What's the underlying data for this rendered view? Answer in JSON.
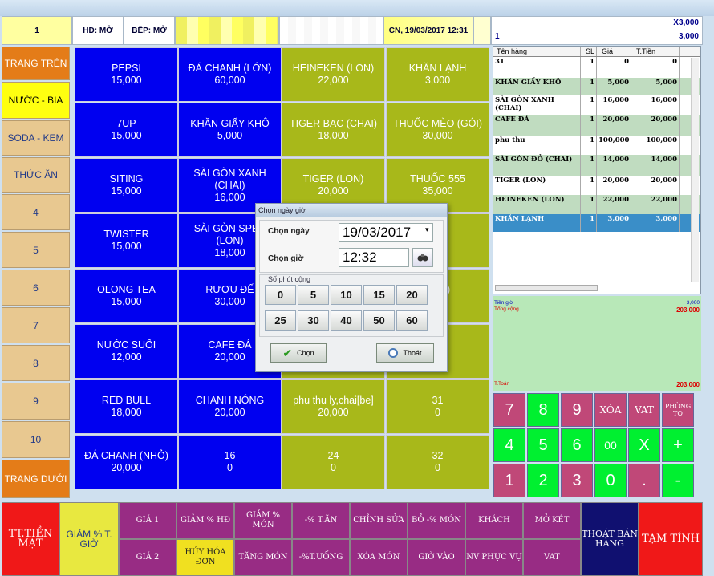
{
  "top": {
    "table_no": "1",
    "hd_status": "HĐ: MỞ",
    "bep_status": "BẾP: MỞ",
    "datetime": "CN, 19/03/2017  12:31",
    "right_qty": "X3,000",
    "right_left": "1",
    "right_total": "3,000"
  },
  "categories": [
    {
      "label": "TRANG TRÊN"
    },
    {
      "label": "NƯỚC - BIA"
    },
    {
      "label": "SODA - KEM"
    },
    {
      "label": "THỨC ĂN"
    },
    {
      "label": "4"
    },
    {
      "label": "5"
    },
    {
      "label": "6"
    },
    {
      "label": "7"
    },
    {
      "label": "8"
    },
    {
      "label": "9"
    },
    {
      "label": "10"
    },
    {
      "label": "TRANG DƯỚI"
    }
  ],
  "products": [
    {
      "name": "PEPSI",
      "price": "15,000"
    },
    {
      "name": "ĐÁ CHANH (LỚN)",
      "price": "60,000"
    },
    {
      "name": "HEINEKEN (LON)",
      "price": "22,000"
    },
    {
      "name": "KHĂN LẠNH",
      "price": "3,000"
    },
    {
      "name": "7UP",
      "price": "15,000"
    },
    {
      "name": "KHĂN GIẤY KHÔ",
      "price": "5,000"
    },
    {
      "name": "TIGER BẠC (CHAI)",
      "price": "18,000"
    },
    {
      "name": "THUỐC MÈO (GÓI)",
      "price": "30,000"
    },
    {
      "name": "SITING",
      "price": "15,000"
    },
    {
      "name": "SÀI GÒN XANH (CHAI)",
      "price": "16,000"
    },
    {
      "name": "TIGER (LON)",
      "price": "20,000"
    },
    {
      "name": "THUỐC 555",
      "price": "35,000"
    },
    {
      "name": "TWISTER",
      "price": "15,000"
    },
    {
      "name": "SÀI GÒN SPEN (LON)",
      "price": "18,000"
    },
    {
      "name": "",
      "price": ""
    },
    {
      "name": "...ẸT",
      "price": ""
    },
    {
      "name": "OLONG TEA",
      "price": "15,000"
    },
    {
      "name": "RƯỢU ĐẾ",
      "price": "30,000"
    },
    {
      "name": "",
      "price": ""
    },
    {
      "name": "(GÓI)",
      "price": "...0"
    },
    {
      "name": "NƯỚC SUỐI",
      "price": "12,000"
    },
    {
      "name": "CAFE ĐÁ",
      "price": "20,000"
    },
    {
      "name": "",
      "price": ""
    },
    {
      "name": "...I",
      "price": ""
    },
    {
      "name": "RED BULL",
      "price": "18,000"
    },
    {
      "name": "CHANH NÓNG",
      "price": "20,000"
    },
    {
      "name": "phu thu ly,chai[be]",
      "price": "20,000"
    },
    {
      "name": "31",
      "price": "0"
    },
    {
      "name": "ĐÁ CHANH (NHỎ)",
      "price": "20,000"
    },
    {
      "name": "16",
      "price": "0"
    },
    {
      "name": "24",
      "price": "0"
    },
    {
      "name": "32",
      "price": "0"
    }
  ],
  "order": {
    "headers": [
      "Tên hàng",
      "SL",
      "Giá",
      "T.Tiền"
    ],
    "rows": [
      {
        "name": "31",
        "qty": "1",
        "price": "0",
        "total": "0"
      },
      {
        "name": "KHĂN GIẤY KHÔ",
        "qty": "1",
        "price": "5,000",
        "total": "5,000"
      },
      {
        "name": "SÀI GÒN XANH (CHAI)",
        "qty": "1",
        "price": "16,000",
        "total": "16,000"
      },
      {
        "name": "CAFE ĐÁ",
        "qty": "1",
        "price": "20,000",
        "total": "20,000"
      },
      {
        "name": "phu thu",
        "qty": "1",
        "price": "100,000",
        "total": "100,000"
      },
      {
        "name": "SÀI GÒN ĐỎ (CHAI)",
        "qty": "1",
        "price": "14,000",
        "total": "14,000"
      },
      {
        "name": "TIGER (LON)",
        "qty": "1",
        "price": "20,000",
        "total": "20,000"
      },
      {
        "name": "HEINEKEN (LON)",
        "qty": "1",
        "price": "22,000",
        "total": "22,000"
      },
      {
        "name": "KHĂN LẠNH",
        "qty": "1",
        "price": "3,000",
        "total": "3,000"
      }
    ],
    "tien_gio_label": "Tiền giờ",
    "tien_gio": "3,000",
    "tong_cong_label": "Tổng cộng",
    "tong_cong": "203,000",
    "ttoan_label": "T.Toán",
    "ttoan": "203,000"
  },
  "keypad": [
    "7",
    "8",
    "9",
    "XÓA",
    "VAT",
    "PHÒNG TO",
    "4",
    "5",
    "6",
    "00",
    "X",
    "+",
    "1",
    "2",
    "3",
    "0",
    ".",
    "-"
  ],
  "bottom": {
    "tt_tien_mat": "TT.TIỀN MẶT",
    "giam_t_gio": "GIẢM % T. GIỜ",
    "gia1": "GIÁ 1",
    "gia2": "GIÁ 2",
    "giam_hd": "GIẢM % HĐ",
    "huy_hoa_don": "HỦY HÓA ĐƠN",
    "giam_mon": "GIẢM % MÓN",
    "tang_mon": "TĂNG MÓN",
    "t_an": "-% T.ĂN",
    "t_uong": "-%T.UỐNG",
    "chinh_sua": "CHỈNH SỬA",
    "xoa_mon": "XÓA MÓN",
    "bo_mon": "BỎ -% MÓN",
    "gio_vao": "GIỜ VÀO",
    "khach": "KHÁCH",
    "nv_phuc_vu": "NV PHỤC VỤ",
    "mo_ket": "MỞ KÉT",
    "vat": "VAT",
    "thoat_ban_hang": "THOÁT BÁN HÀNG",
    "tam_tinh": "TẠM TÍNH"
  },
  "dialog": {
    "title": "Chọn ngày giờ",
    "date_label": "Chọn ngày",
    "date_value": "19/03/2017",
    "time_label": "Chọn giờ",
    "time_value": "12:32",
    "minutes_label": "Số phút cộng",
    "minutes": [
      "0",
      "5",
      "10",
      "15",
      "20",
      "25",
      "30",
      "40",
      "50",
      "60"
    ],
    "ok_label": "Chọn",
    "exit_label": "Thoát"
  }
}
